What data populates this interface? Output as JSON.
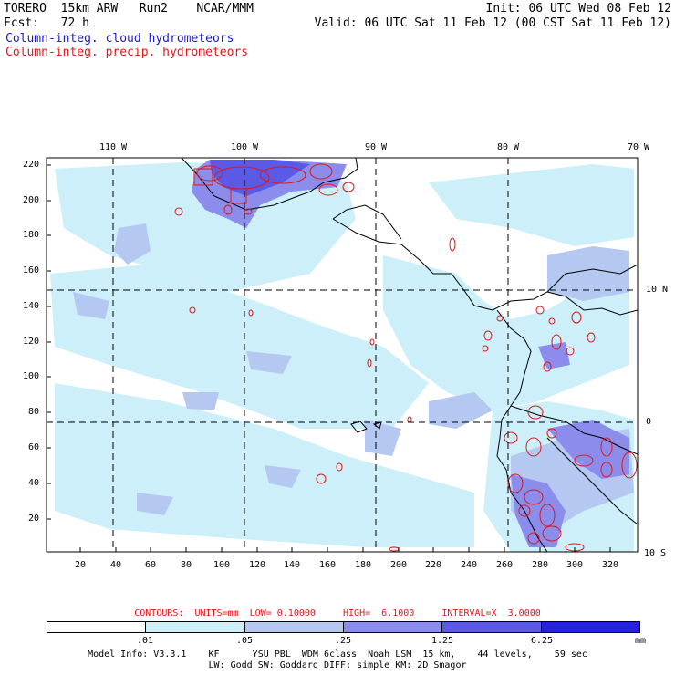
{
  "header": {
    "model": "TORERO  15km ARW   Run2    NCAR/MMM",
    "init": "Init: 06 UTC Wed 08 Feb 12",
    "fcst": "Fcst:   72 h",
    "valid": "Valid: 06 UTC Sat 11 Feb 12 (00 CST Sat 11 Feb 12)",
    "legend_cloud": "Column-integ. cloud hydrometeors",
    "legend_precip": "Column-integ. precip. hydrometeors"
  },
  "map": {
    "lon_labels": [
      "110 W",
      "100 W",
      "90 W",
      "80 W",
      "70 W"
    ],
    "lat_labels": [
      "10 N",
      "0",
      "10 S"
    ],
    "y_ticks": [
      "220",
      "200",
      "180",
      "160",
      "140",
      "120",
      "100",
      "80",
      "60",
      "40",
      "20"
    ],
    "x_ticks": [
      "20",
      "40",
      "60",
      "80",
      "100",
      "120",
      "140",
      "160",
      "180",
      "200",
      "220",
      "240",
      "260",
      "280",
      "300",
      "320"
    ],
    "colors": {
      "land_fill": "#ffffff",
      "shade_1": "#cceff9",
      "shade_2": "#b4c8f2",
      "shade_3": "#8c8ced",
      "shade_4": "#5a5ae6",
      "shade_5": "#2323dd",
      "precip_contour": "#e01818",
      "coastline": "#000000"
    }
  },
  "contour_info": "CONTOURS:  UNITS=mm  LOW= 0.10000     HIGH=  6.1000     INTERVAL=X  3.0000",
  "colorbar": {
    "labels": [
      ".01",
      ".05",
      ".25",
      "1.25",
      "6.25"
    ],
    "units": "mm",
    "colors": [
      "#ffffff",
      "#cceff9",
      "#b4c8f2",
      "#8c8ced",
      "#5a5ae6",
      "#2323dd"
    ]
  },
  "footer": {
    "line1": "Model Info: V3.3.1    KF      YSU PBL  WDM 6class  Noah LSM  15 km,    44 levels,    59 sec",
    "line2": "LW: Godd SW: Goddard DIFF: simple KM: 2D Smagor"
  }
}
